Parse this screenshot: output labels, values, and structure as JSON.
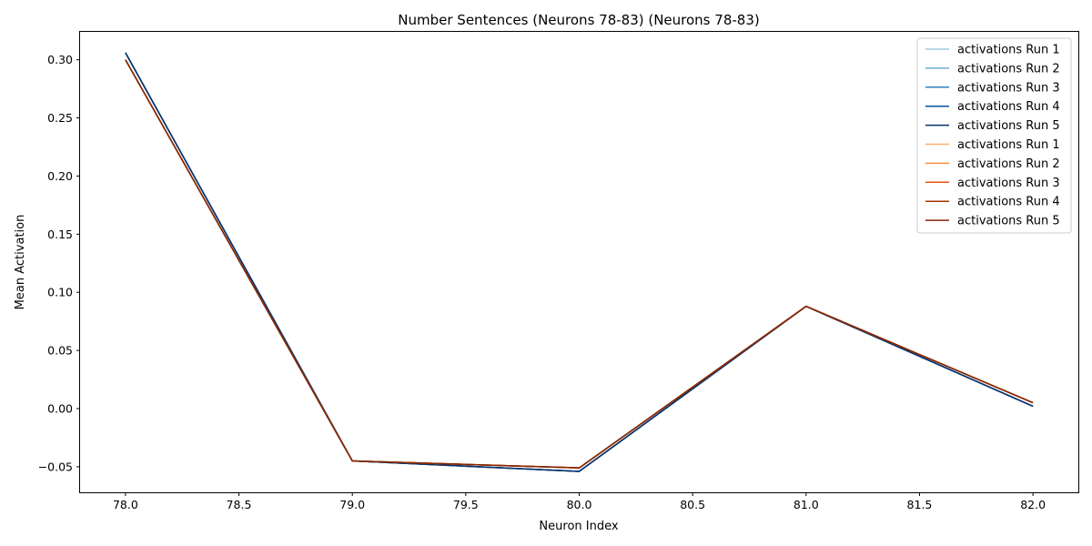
{
  "chart_data": {
    "type": "line",
    "title": "Number Sentences (Neurons 78-83) (Neurons 78-83)",
    "xlabel": "Neuron Index",
    "ylabel": "Mean Activation",
    "xlim": [
      77.8,
      82.2
    ],
    "ylim": [
      -0.072,
      0.324
    ],
    "xticks": [
      78.0,
      78.5,
      79.0,
      79.5,
      80.0,
      80.5,
      81.0,
      81.5,
      82.0
    ],
    "xtick_labels": [
      "78.0",
      "78.5",
      "79.0",
      "79.5",
      "80.0",
      "80.5",
      "81.0",
      "81.5",
      "82.0"
    ],
    "yticks": [
      -0.05,
      0.0,
      0.05,
      0.1,
      0.15,
      0.2,
      0.25,
      0.3
    ],
    "ytick_labels": [
      "−0.05",
      "0.00",
      "0.05",
      "0.10",
      "0.15",
      "0.20",
      "0.25",
      "0.30"
    ],
    "grid": false,
    "legend_position": "top-right",
    "x": [
      78,
      79,
      80,
      81,
      82
    ],
    "series": [
      {
        "name": "activations Run 1",
        "color": "#9ecae1",
        "values": [
          0.306,
          -0.045,
          -0.054,
          0.088,
          0.002
        ]
      },
      {
        "name": "activations Run 2",
        "color": "#6baed6",
        "values": [
          0.306,
          -0.045,
          -0.054,
          0.088,
          0.002
        ]
      },
      {
        "name": "activations Run 3",
        "color": "#3182bd",
        "values": [
          0.306,
          -0.045,
          -0.054,
          0.088,
          0.002
        ]
      },
      {
        "name": "activations Run 4",
        "color": "#08519c",
        "values": [
          0.306,
          -0.045,
          -0.054,
          0.088,
          0.002
        ]
      },
      {
        "name": "activations Run 5",
        "color": "#08306b",
        "values": [
          0.306,
          -0.045,
          -0.054,
          0.088,
          0.002
        ]
      },
      {
        "name": "activations Run 1",
        "color": "#fdae6b",
        "values": [
          0.3,
          -0.045,
          -0.051,
          0.088,
          0.005
        ]
      },
      {
        "name": "activations Run 2",
        "color": "#fd8d3c",
        "values": [
          0.3,
          -0.045,
          -0.051,
          0.088,
          0.005
        ]
      },
      {
        "name": "activations Run 3",
        "color": "#e6550d",
        "values": [
          0.3,
          -0.045,
          -0.051,
          0.088,
          0.005
        ]
      },
      {
        "name": "activations Run 4",
        "color": "#a63603",
        "values": [
          0.3,
          -0.045,
          -0.051,
          0.088,
          0.005
        ]
      },
      {
        "name": "activations Run 5",
        "color": "#7f2704",
        "values": [
          0.3,
          -0.045,
          -0.051,
          0.088,
          0.005
        ]
      }
    ]
  }
}
